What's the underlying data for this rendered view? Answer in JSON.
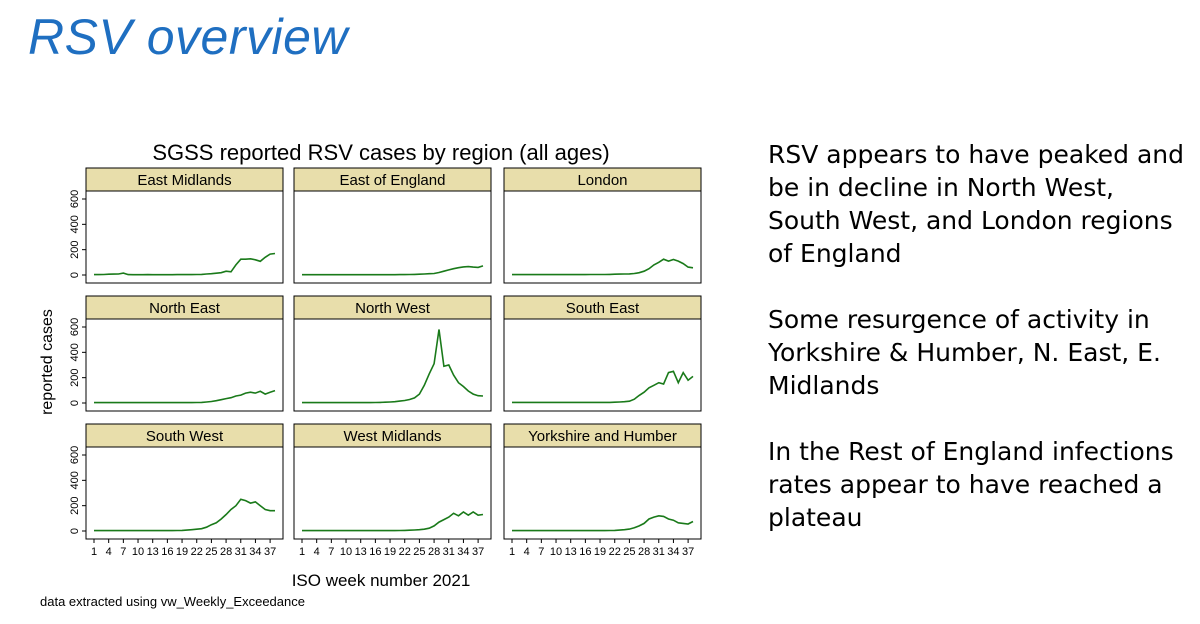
{
  "slide": {
    "title": "RSV overview",
    "bullets": [
      "RSV appears to have peaked and be in decline in North West, South West, and London regions of England",
      "Some resurgence of activity in Yorkshire & Humber, N. East, E. Midlands",
      "In the Rest of England infections rates appear to have reached a plateau"
    ],
    "footnote": "data extracted using vw_Weekly_Exceedance"
  },
  "chart_data": {
    "type": "line",
    "title": "SGSS reported RSV cases by region (all ages)",
    "xlabel": "ISO week number 2021",
    "ylabel": "reported cases",
    "x_ticks": [
      1,
      4,
      7,
      10,
      13,
      16,
      19,
      22,
      25,
      28,
      31,
      34,
      37
    ],
    "y_ticks": [
      0,
      200,
      400,
      600
    ],
    "xlim": [
      1,
      38
    ],
    "ylim": [
      0,
      600
    ],
    "grid": false,
    "line_color": "#1a7a1a",
    "panel_header_color": "#e8deab",
    "x": [
      1,
      2,
      3,
      4,
      5,
      6,
      7,
      8,
      9,
      10,
      11,
      12,
      13,
      14,
      15,
      16,
      17,
      18,
      19,
      20,
      21,
      22,
      23,
      24,
      25,
      26,
      27,
      28,
      29,
      30,
      31,
      32,
      33,
      34,
      35,
      36,
      37,
      38
    ],
    "panels": [
      {
        "name": "East Midlands",
        "values": [
          3,
          3,
          4,
          6,
          7,
          8,
          15,
          3,
          2,
          2,
          2,
          3,
          2,
          2,
          2,
          2,
          2,
          3,
          3,
          3,
          3,
          4,
          5,
          8,
          10,
          14,
          18,
          30,
          25,
          80,
          125,
          125,
          128,
          120,
          108,
          140,
          165,
          170
        ]
      },
      {
        "name": "East of England",
        "values": [
          2,
          2,
          2,
          2,
          2,
          2,
          2,
          2,
          2,
          2,
          2,
          2,
          2,
          2,
          2,
          2,
          2,
          2,
          2,
          2,
          3,
          3,
          4,
          5,
          6,
          8,
          10,
          12,
          20,
          30,
          40,
          50,
          58,
          64,
          66,
          62,
          60,
          72
        ]
      },
      {
        "name": "London",
        "values": [
          3,
          3,
          3,
          3,
          3,
          3,
          3,
          3,
          3,
          3,
          3,
          3,
          3,
          3,
          3,
          3,
          4,
          4,
          4,
          4,
          5,
          6,
          7,
          8,
          9,
          12,
          18,
          30,
          50,
          80,
          100,
          125,
          110,
          122,
          110,
          90,
          62,
          57
        ]
      },
      {
        "name": "North East",
        "values": [
          3,
          3,
          3,
          3,
          3,
          3,
          3,
          3,
          3,
          3,
          3,
          3,
          3,
          3,
          3,
          3,
          3,
          3,
          3,
          3,
          3,
          4,
          5,
          8,
          12,
          18,
          26,
          35,
          42,
          55,
          62,
          78,
          85,
          78,
          92,
          70,
          85,
          98
        ]
      },
      {
        "name": "North West",
        "values": [
          3,
          3,
          3,
          3,
          3,
          3,
          3,
          3,
          3,
          3,
          3,
          3,
          3,
          3,
          3,
          4,
          5,
          6,
          8,
          10,
          15,
          20,
          28,
          40,
          70,
          140,
          230,
          310,
          580,
          290,
          300,
          220,
          160,
          130,
          95,
          70,
          58,
          55
        ]
      },
      {
        "name": "South East",
        "values": [
          5,
          5,
          5,
          5,
          5,
          5,
          5,
          5,
          5,
          5,
          5,
          5,
          5,
          5,
          5,
          5,
          5,
          5,
          5,
          5,
          5,
          6,
          8,
          10,
          14,
          30,
          60,
          85,
          120,
          140,
          160,
          150,
          240,
          250,
          160,
          240,
          180,
          210
        ]
      },
      {
        "name": "South West",
        "values": [
          3,
          3,
          3,
          3,
          3,
          3,
          3,
          3,
          3,
          3,
          3,
          3,
          3,
          3,
          3,
          3,
          3,
          4,
          5,
          7,
          10,
          14,
          18,
          30,
          50,
          65,
          95,
          130,
          170,
          200,
          250,
          240,
          220,
          230,
          200,
          170,
          160,
          160
        ]
      },
      {
        "name": "West Midlands",
        "values": [
          3,
          3,
          3,
          3,
          3,
          3,
          3,
          3,
          3,
          3,
          3,
          3,
          3,
          3,
          3,
          3,
          3,
          3,
          3,
          3,
          4,
          5,
          6,
          8,
          10,
          14,
          22,
          40,
          70,
          90,
          110,
          140,
          120,
          150,
          125,
          150,
          125,
          130
        ]
      },
      {
        "name": "Yorkshire and Humber",
        "values": [
          3,
          3,
          3,
          3,
          3,
          3,
          3,
          3,
          3,
          3,
          3,
          3,
          3,
          3,
          3,
          3,
          3,
          3,
          3,
          3,
          4,
          5,
          7,
          10,
          15,
          25,
          40,
          60,
          95,
          110,
          120,
          115,
          95,
          85,
          65,
          60,
          55,
          75
        ]
      }
    ]
  }
}
